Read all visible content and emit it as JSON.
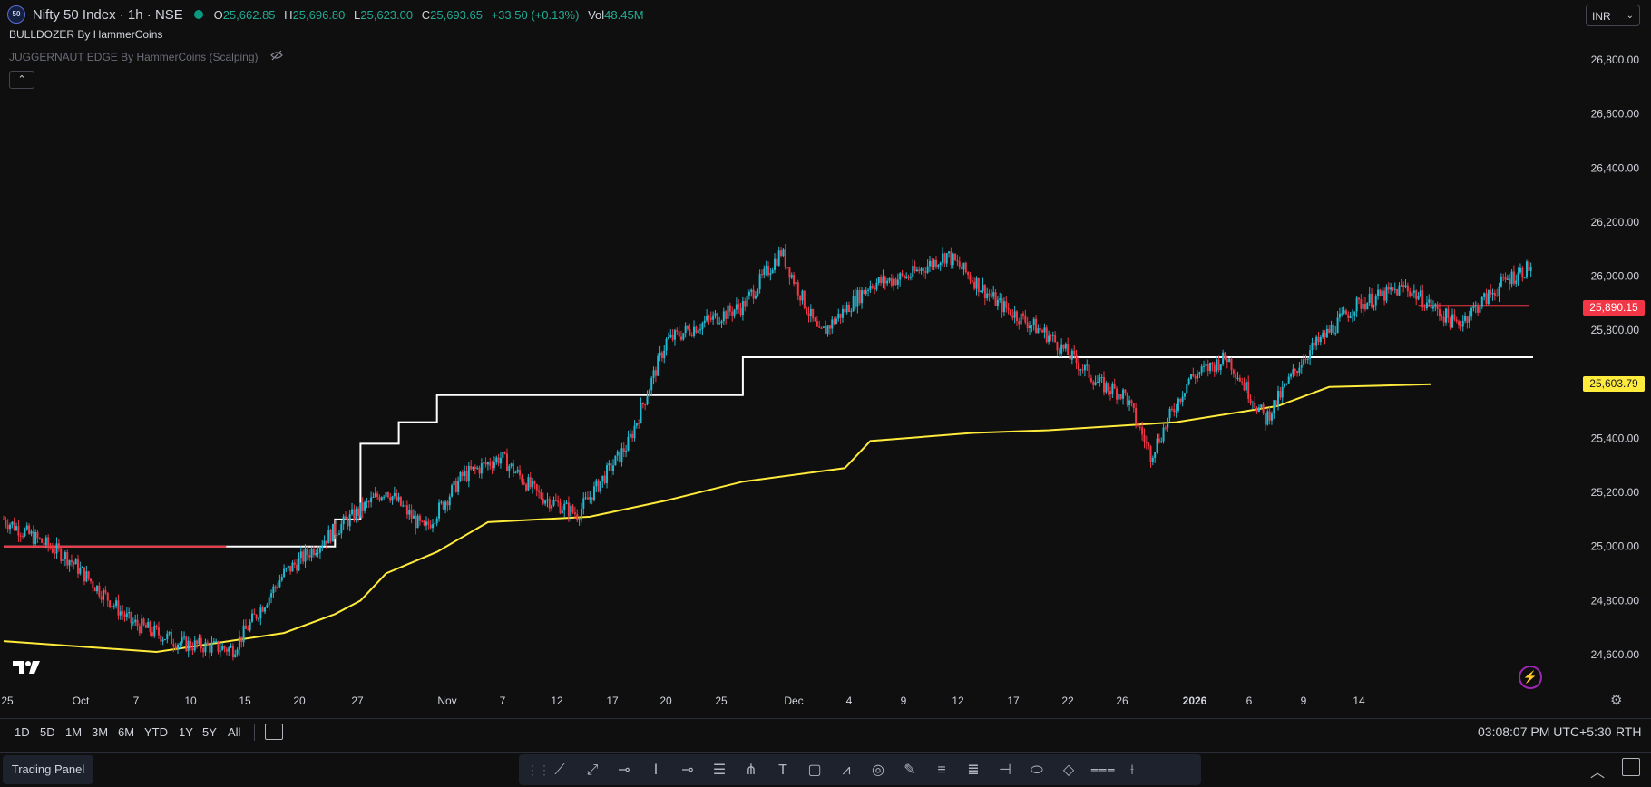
{
  "legend": {
    "symbol_badge": "50",
    "title": "Nifty 50 Index · 1h · NSE",
    "open_label": "O",
    "open": "25,662.85",
    "high_label": "H",
    "high": "25,696.80",
    "low_label": "L",
    "low": "25,623.00",
    "close_label": "C",
    "close": "25,693.65",
    "change": "+33.50 (+0.13%)",
    "vol_label": "Vol",
    "vol": "48.45M",
    "status_color": "#089981",
    "up_color": "#22ab94"
  },
  "indicators": {
    "first": "BULLDOZER By HammerCoins",
    "second": "JUGGERNAUT EDGE By HammerCoins (Scalping)",
    "second_hidden": true
  },
  "currency": {
    "label": "INR"
  },
  "price_tags": {
    "red": "25,890.15",
    "yellow": "25,603.79",
    "red_color": "#f23645",
    "yellow_color": "#ffeb3b"
  },
  "time_labels": [
    "25",
    "Oct",
    "7",
    "10",
    "15",
    "20",
    "27",
    "Nov",
    "7",
    "12",
    "17",
    "20",
    "25",
    "Dec",
    "4",
    "9",
    "12",
    "17",
    "22",
    "26",
    "2026",
    "6",
    "9",
    "14"
  ],
  "range_buttons": [
    "1D",
    "5D",
    "1M",
    "3M",
    "6M",
    "YTD",
    "1Y",
    "5Y",
    "All"
  ],
  "clock": "03:08:07 PM UTC+5:30",
  "session": "RTH",
  "bottom": {
    "trading_panel": "Trading Panel"
  },
  "chart_data": {
    "type": "candlestick",
    "symbol": "Nifty 50 Index",
    "interval": "1h",
    "y_ticks": [
      26800,
      26600,
      26400,
      26200,
      26000,
      25800,
      25600,
      25400,
      25200,
      25000,
      24800,
      24600
    ],
    "y_tick_labels": [
      "26,800.00",
      "26,600.00",
      "26,400.00",
      "26,200.00",
      "26,000.00",
      "25,800.00",
      "25,600.00",
      "25,400.00",
      "25,200.00",
      "25,000.00",
      "24,800.00",
      "24,600.00"
    ],
    "ylim": [
      24520,
      26900
    ],
    "x_count": 120,
    "price_path": [
      [
        0,
        25100
      ],
      [
        5,
        24960
      ],
      [
        10,
        24720
      ],
      [
        14,
        24640
      ],
      [
        18,
        24620
      ],
      [
        22,
        24900
      ],
      [
        26,
        25060
      ],
      [
        30,
        25210
      ],
      [
        33,
        25060
      ],
      [
        36,
        25260
      ],
      [
        39,
        25330
      ],
      [
        42,
        25190
      ],
      [
        45,
        25120
      ],
      [
        49,
        25380
      ],
      [
        52,
        25760
      ],
      [
        55,
        25830
      ],
      [
        58,
        25890
      ],
      [
        61,
        26090
      ],
      [
        64,
        25780
      ],
      [
        68,
        25970
      ],
      [
        71,
        26000
      ],
      [
        74,
        26080
      ],
      [
        78,
        25900
      ],
      [
        82,
        25780
      ],
      [
        86,
        25600
      ],
      [
        88,
        25560
      ],
      [
        90,
        25340
      ],
      [
        93,
        25620
      ],
      [
        96,
        25700
      ],
      [
        99,
        25470
      ],
      [
        102,
        25700
      ],
      [
        106,
        25890
      ],
      [
        110,
        25960
      ],
      [
        114,
        25820
      ],
      [
        118,
        25990
      ],
      [
        120,
        26040
      ]
    ],
    "price_path_note": "",
    "white_line": [
      [
        0,
        25000
      ],
      [
        26,
        25000
      ],
      [
        26,
        25100
      ],
      [
        28,
        25100
      ],
      [
        28,
        25380
      ],
      [
        31,
        25380
      ],
      [
        31,
        25460
      ],
      [
        34,
        25460
      ],
      [
        34,
        25560
      ],
      [
        58,
        25560
      ],
      [
        58,
        25700
      ],
      [
        120,
        25700
      ]
    ],
    "yellow_line": [
      [
        0,
        24650
      ],
      [
        12,
        24610
      ],
      [
        22,
        24680
      ],
      [
        26,
        24750
      ],
      [
        28,
        24800
      ],
      [
        30,
        24900
      ],
      [
        34,
        24980
      ],
      [
        38,
        25090
      ],
      [
        46,
        25110
      ],
      [
        52,
        25170
      ],
      [
        58,
        25240
      ],
      [
        66,
        25290
      ],
      [
        68,
        25390
      ],
      [
        76,
        25420
      ],
      [
        82,
        25430
      ],
      [
        92,
        25460
      ],
      [
        100,
        25520
      ],
      [
        104,
        25590
      ],
      [
        112,
        25600
      ]
    ],
    "red_level": {
      "value": 25890.15
    },
    "yellow_level": {
      "value": 25603.79
    }
  }
}
